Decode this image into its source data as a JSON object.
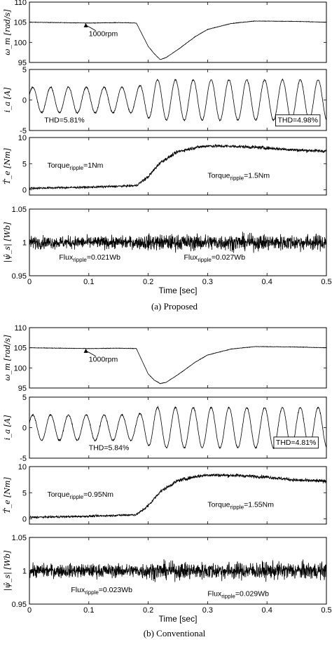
{
  "chart_data": [
    {
      "type": "figure",
      "caption": "(a) Proposed",
      "xlabel": "Time [sec]",
      "xlim": [
        0,
        0.5
      ],
      "xticks": [
        "0",
        "0.1",
        "0.2",
        "0.3",
        "0.4",
        "0.5"
      ],
      "subplots": [
        {
          "type": "line",
          "ylabel": "ω_m [rad/s]",
          "ylim": [
            95,
            110
          ],
          "yticks": [
            "95",
            "100",
            "105",
            "110"
          ],
          "signal": "speed",
          "points": [
            [
              0,
              105
            ],
            [
              0.05,
              104.9
            ],
            [
              0.1,
              104.8
            ],
            [
              0.15,
              104.9
            ],
            [
              0.18,
              104.8
            ],
            [
              0.2,
              99
            ],
            [
              0.21,
              97.2
            ],
            [
              0.22,
              95.7
            ],
            [
              0.23,
              96.2
            ],
            [
              0.25,
              98.2
            ],
            [
              0.28,
              101.5
            ],
            [
              0.3,
              103.2
            ],
            [
              0.34,
              104.7
            ],
            [
              0.38,
              105.3
            ],
            [
              0.45,
              105.2
            ],
            [
              0.5,
              105
            ]
          ],
          "annotations": [
            {
              "text": "1000rpm",
              "x": 0.1,
              "y": 101.5,
              "arrow_to": [
                0.095,
                104.8
              ]
            }
          ]
        },
        {
          "type": "line",
          "ylabel": "i_a [A]",
          "ylim": [
            -5,
            5
          ],
          "yticks": [
            "-5",
            "0",
            "5"
          ],
          "signal": "current",
          "amplitude_before": 2.1,
          "amplitude_after": 3.3,
          "frequency_hz": 33.3,
          "change_time": 0.18,
          "annotations": [
            {
              "text": "THD=5.81%",
              "x": 0.025,
              "y": -3.7,
              "boxed": false
            },
            {
              "text": "THD=4.98%",
              "x": 0.418,
              "y": -3.7,
              "boxed": true
            }
          ]
        },
        {
          "type": "line",
          "ylabel": "T̂_e [Nm]",
          "ylim": [
            -1,
            10
          ],
          "yticks": [
            "0",
            "5",
            "10"
          ],
          "signal": "torque",
          "points": [
            [
              0,
              0.3
            ],
            [
              0.1,
              0.5
            ],
            [
              0.18,
              0.8
            ],
            [
              0.2,
              2.5
            ],
            [
              0.22,
              5.2
            ],
            [
              0.25,
              7.3
            ],
            [
              0.28,
              8.1
            ],
            [
              0.3,
              8.4
            ],
            [
              0.35,
              8.3
            ],
            [
              0.4,
              8
            ],
            [
              0.45,
              7.6
            ],
            [
              0.5,
              7.4
            ]
          ],
          "ripple_before": 1.0,
          "ripple_after": 1.5,
          "annotations": [
            {
              "text": "Torque",
              "sub": "ripple",
              "suffix": "=1Nm",
              "x": 0.03,
              "y": 4.2
            },
            {
              "text": "Torque",
              "sub": "ripple",
              "suffix": "=1.5Nm",
              "x": 0.3,
              "y": 2.3
            }
          ]
        },
        {
          "type": "line",
          "ylabel": "|ψ̂_s| [Wb]",
          "ylim": [
            0.95,
            1.05
          ],
          "yticks": [
            "0.95",
            "1",
            "1.05"
          ],
          "signal": "flux",
          "mean": 1.0,
          "ripple_before": 0.021,
          "ripple_after": 0.027,
          "annotations": [
            {
              "text": "Flux",
              "sub": "ripple",
              "suffix": "=0.021Wb",
              "x": 0.05,
              "y": 0.974
            },
            {
              "text": "Flux",
              "sub": "ripple",
              "suffix": "=0.027Wb",
              "x": 0.26,
              "y": 0.974
            }
          ]
        }
      ]
    },
    {
      "type": "figure",
      "caption": "(b) Conventional",
      "xlabel": "Time [sec]",
      "xlim": [
        0,
        0.5
      ],
      "xticks": [
        "0",
        "0.1",
        "0.2",
        "0.3",
        "0.4",
        "0.5"
      ],
      "subplots": [
        {
          "type": "line",
          "ylabel": "ω_m [rad/s]",
          "ylim": [
            95,
            110
          ],
          "yticks": [
            "95",
            "100",
            "105",
            "110"
          ],
          "signal": "speed",
          "points": [
            [
              0,
              105
            ],
            [
              0.05,
              104.9
            ],
            [
              0.1,
              104.8
            ],
            [
              0.15,
              104.9
            ],
            [
              0.18,
              104.8
            ],
            [
              0.2,
              98.5
            ],
            [
              0.21,
              97
            ],
            [
              0.22,
              96.1
            ],
            [
              0.23,
              96.4
            ],
            [
              0.25,
              98.3
            ],
            [
              0.28,
              101.5
            ],
            [
              0.3,
              103.2
            ],
            [
              0.34,
              104.7
            ],
            [
              0.38,
              105.3
            ],
            [
              0.45,
              105.2
            ],
            [
              0.5,
              105
            ]
          ],
          "annotations": [
            {
              "text": "1000rpm",
              "x": 0.1,
              "y": 101.5,
              "arrow_to": [
                0.095,
                104.8
              ]
            }
          ]
        },
        {
          "type": "line",
          "ylabel": "i_a [A]",
          "ylim": [
            -5,
            5
          ],
          "yticks": [
            "-5",
            "0",
            "5"
          ],
          "signal": "current",
          "amplitude_before": 2.1,
          "amplitude_after": 3.3,
          "frequency_hz": 33.3,
          "change_time": 0.18,
          "annotations": [
            {
              "text": "THD=5.84%",
              "x": 0.1,
              "y": -3.7,
              "boxed": false
            },
            {
              "text": "THD=4.81%",
              "x": 0.415,
              "y": -2.8,
              "boxed": true
            }
          ]
        },
        {
          "type": "line",
          "ylabel": "T̂_e [Nm]",
          "ylim": [
            -1,
            10
          ],
          "yticks": [
            "0",
            "5",
            "10"
          ],
          "signal": "torque",
          "points": [
            [
              0,
              0.3
            ],
            [
              0.1,
              0.5
            ],
            [
              0.18,
              0.8
            ],
            [
              0.2,
              2.5
            ],
            [
              0.22,
              5.2
            ],
            [
              0.25,
              7.3
            ],
            [
              0.28,
              8.1
            ],
            [
              0.3,
              8.4
            ],
            [
              0.35,
              8.3
            ],
            [
              0.4,
              8
            ],
            [
              0.45,
              7.4
            ],
            [
              0.5,
              7.2
            ]
          ],
          "ripple_before": 0.95,
          "ripple_after": 1.55,
          "annotations": [
            {
              "text": "Torque",
              "sub": "ripple",
              "suffix": "=0.95Nm",
              "x": 0.03,
              "y": 4.2
            },
            {
              "text": "Torque",
              "sub": "ripple",
              "suffix": "=1.55Nm",
              "x": 0.3,
              "y": 2.3
            }
          ]
        },
        {
          "type": "line",
          "ylabel": "|ψ̂_s| [Wb]",
          "ylim": [
            0.95,
            1.05
          ],
          "yticks": [
            "0.95",
            "1",
            "1.05"
          ],
          "signal": "flux",
          "mean": 1.0,
          "ripple_before": 0.023,
          "ripple_after": 0.029,
          "annotations": [
            {
              "text": "Flux",
              "sub": "ripple",
              "suffix": "=0.023Wb",
              "x": 0.07,
              "y": 0.968
            },
            {
              "text": "Flux",
              "sub": "ripple",
              "suffix": "=0.029Wb",
              "x": 0.3,
              "y": 0.962
            }
          ]
        }
      ]
    }
  ]
}
